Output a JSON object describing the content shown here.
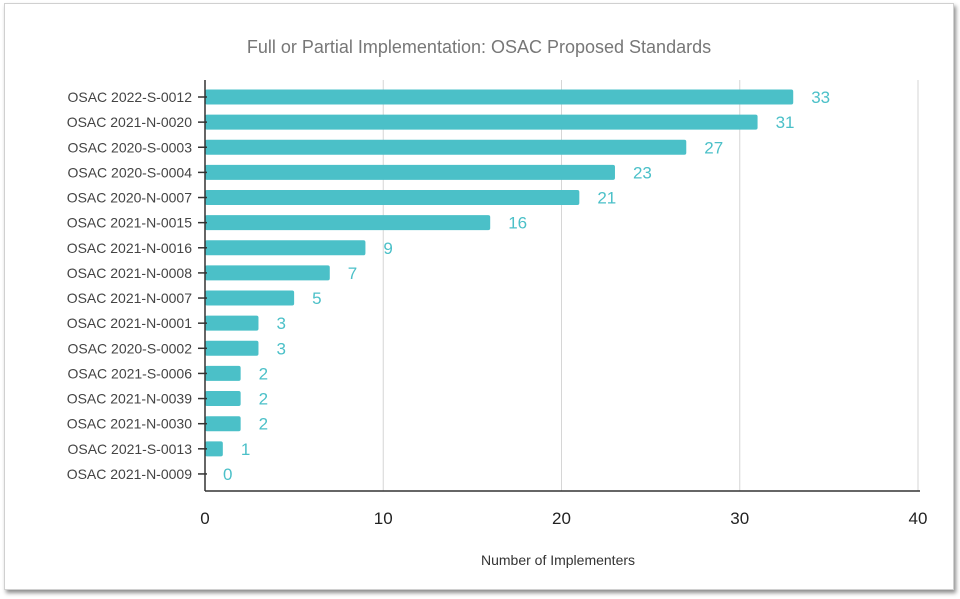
{
  "chart_data": {
    "type": "bar",
    "orientation": "horizontal",
    "title": "Full or Partial Implementation: OSAC Proposed Standards",
    "xlabel": "Number of Implementers",
    "ylabel": "",
    "categories": [
      "OSAC 2022-S-0012",
      "OSAC 2021-N-0020",
      "OSAC 2020-S-0003",
      "OSAC 2020-S-0004",
      "OSAC 2020-N-0007",
      "OSAC 2021-N-0015",
      "OSAC 2021-N-0016",
      "OSAC 2021-N-0008",
      "OSAC 2021-N-0007",
      "OSAC 2021-N-0001",
      "OSAC 2020-S-0002",
      "OSAC 2021-S-0006",
      "OSAC 2021-N-0039",
      "OSAC 2021-N-0030",
      "OSAC 2021-S-0013",
      "OSAC 2021-N-0009"
    ],
    "values": [
      33,
      31,
      27,
      23,
      21,
      16,
      9,
      7,
      5,
      3,
      3,
      2,
      2,
      2,
      1,
      0
    ],
    "xlim": [
      0,
      40
    ],
    "xticks": [
      0,
      10,
      20,
      30,
      40
    ],
    "grid": "vertical",
    "data_labels": true,
    "legend": "none",
    "colors": {
      "bar": "#4bc0c8",
      "label": "#4bc0c8"
    }
  }
}
